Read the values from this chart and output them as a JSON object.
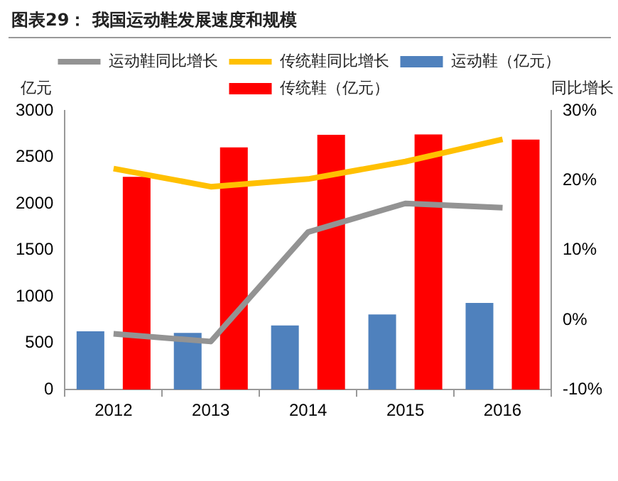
{
  "chart_data": {
    "type": "bar",
    "title": "图表29：  我国运动鞋发展速度和规模",
    "ylabel": "亿元",
    "y2label": "同比增长",
    "categories": [
      "2012",
      "2013",
      "2014",
      "2015",
      "2016"
    ],
    "series": [
      {
        "name": "运动鞋（亿元）",
        "color": "#4f81bd",
        "values": [
          627,
          610,
          690,
          808,
          932
        ]
      },
      {
        "name": "传统鞋（亿元）",
        "color": "#ff0000",
        "values": [
          2288,
          2605,
          2740,
          2745,
          2690
        ]
      },
      {
        "name": "运动鞋同比增长",
        "type": "line",
        "axis": "y2",
        "color": "#939393",
        "values": [
          -2.0,
          -3.1,
          12.6,
          16.7,
          16.1
        ]
      },
      {
        "name": "传统鞋同比增长",
        "type": "line",
        "axis": "y2",
        "color": "#ffc000",
        "values": [
          21.7,
          19.1,
          20.2,
          22.7,
          25.9
        ]
      }
    ],
    "ylim": [
      0,
      3000
    ],
    "yticks": [
      0,
      500,
      1000,
      1500,
      2000,
      2500,
      3000
    ],
    "y2lim": [
      -10,
      30
    ],
    "y2ticks": [
      {
        "value": -10,
        "label": "-10%"
      },
      {
        "value": 0,
        "label": "0%"
      },
      {
        "value": 10,
        "label": "10%"
      },
      {
        "value": 20,
        "label": "20%"
      },
      {
        "value": 30,
        "label": "30%"
      }
    ],
    "grid": false,
    "legend": "top",
    "marker": "none"
  }
}
